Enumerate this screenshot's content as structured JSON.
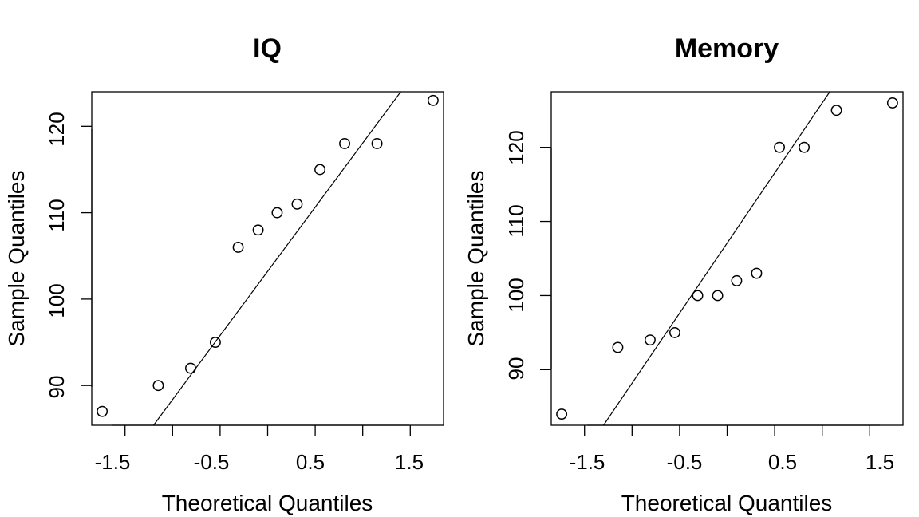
{
  "chart_data": [
    {
      "type": "scatter",
      "subtype": "qq-plot",
      "title": "IQ",
      "xlabel": "Theoretical Quantiles",
      "ylabel": "Sample Quantiles",
      "xlim": [
        -1.85,
        1.85
      ],
      "ylim": [
        85.4,
        124.0
      ],
      "xticks": [
        -1.5,
        -1.0,
        -0.5,
        0.0,
        0.5,
        1.0,
        1.5
      ],
      "xtick_labels": [
        "-1.5",
        "",
        "-0.5",
        "",
        "0.5",
        "",
        "1.5"
      ],
      "yticks": [
        90,
        100,
        110,
        120
      ],
      "ytick_labels": [
        "90",
        "100",
        "110",
        "120"
      ],
      "grid": false,
      "points": {
        "x": [
          -1.74,
          -1.15,
          -0.81,
          -0.55,
          -0.31,
          -0.1,
          0.1,
          0.31,
          0.55,
          0.81,
          1.15,
          1.74
        ],
        "y": [
          87,
          90,
          92,
          95,
          106,
          108,
          110,
          111,
          115,
          118,
          118,
          123
        ]
      },
      "reference_line": {
        "x": [
          -1.2,
          1.4
        ],
        "y": [
          85.4,
          124.0
        ]
      }
    },
    {
      "type": "scatter",
      "subtype": "qq-plot",
      "title": "Memory",
      "xlabel": "Theoretical Quantiles",
      "ylabel": "Sample Quantiles",
      "xlim": [
        -1.85,
        1.85
      ],
      "ylim": [
        82.5,
        127.5
      ],
      "xticks": [
        -1.5,
        -1.0,
        -0.5,
        0.0,
        0.5,
        1.0,
        1.5
      ],
      "xtick_labels": [
        "-1.5",
        "",
        "-0.5",
        "",
        "0.5",
        "",
        "1.5"
      ],
      "yticks": [
        90,
        100,
        110,
        120
      ],
      "ytick_labels": [
        "90",
        "100",
        "110",
        "120"
      ],
      "grid": false,
      "points": {
        "x": [
          -1.74,
          -1.15,
          -0.81,
          -0.55,
          -0.31,
          -0.1,
          0.1,
          0.31,
          0.55,
          0.81,
          1.15,
          1.74
        ],
        "y": [
          84,
          93,
          94,
          95,
          100,
          100,
          102,
          103,
          120,
          120,
          125,
          126
        ]
      },
      "reference_line": {
        "x": [
          -1.3,
          1.08
        ],
        "y": [
          82.5,
          127.5
        ]
      }
    }
  ]
}
